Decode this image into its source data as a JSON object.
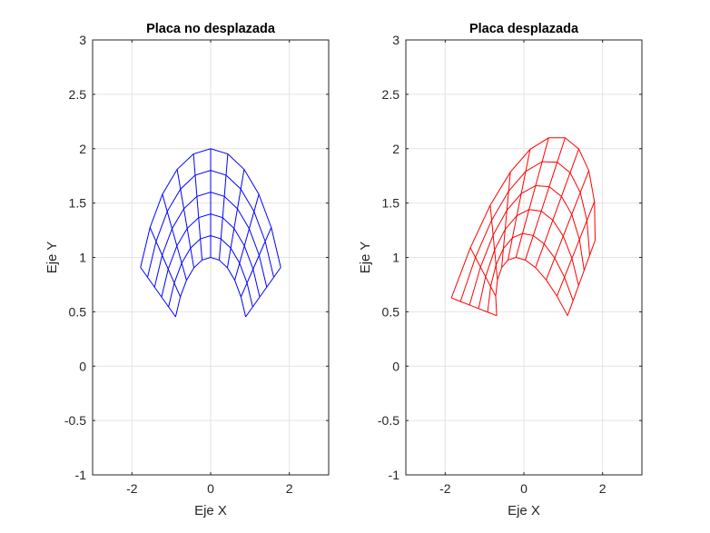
{
  "chart_data": [
    {
      "type": "line",
      "title": "Placa no desplazada",
      "xlabel": "Eje X",
      "ylabel": "Eje Y",
      "xlim": [
        -3,
        3
      ],
      "ylim": [
        -1,
        3
      ],
      "xticks": [
        -2,
        0,
        2
      ],
      "yticks": [
        -1,
        -0.5,
        0,
        0.5,
        1,
        1.5,
        2,
        2.5,
        3
      ],
      "xtick_labels": [
        "-2",
        "0",
        "2"
      ],
      "ytick_labels": [
        "-1",
        "-0.5",
        "0",
        "0.5",
        "1",
        "1.5",
        "2",
        "2.5",
        "3"
      ],
      "grid": true,
      "color": "#0000ff",
      "mesh": {
        "r_range": [
          1,
          2
        ],
        "r_divisions": 5,
        "theta_range_deg": [
          -63,
          63
        ],
        "theta_divisions": 10
      },
      "displacement": null
    },
    {
      "type": "line",
      "title": "Placa desplazada",
      "xlabel": "Eje X",
      "ylabel": "Eje Y",
      "xlim": [
        -3,
        3
      ],
      "ylim": [
        -1,
        3
      ],
      "xticks": [
        -2,
        0,
        2
      ],
      "yticks": [
        -1,
        -0.5,
        0,
        0.5,
        1,
        1.5,
        2,
        2.5,
        3
      ],
      "xtick_labels": [
        "-2",
        "0",
        "2"
      ],
      "ytick_labels": [
        "-1",
        "-0.5",
        "0",
        "0.5",
        "1",
        "1.5",
        "2",
        "2.5",
        "3"
      ],
      "grid": true,
      "color": "#ff0000",
      "mesh": {
        "r_range": [
          1,
          2
        ],
        "r_divisions": 5,
        "theta_range_deg": [
          -63,
          63
        ],
        "theta_divisions": 10
      },
      "displacement": {
        "inner": {
          "left": [
            0.2,
            0.01
          ],
          "center": [
            -0.2,
            0.0
          ],
          "right": [
            0.22,
            0.01
          ]
        },
        "outer": {
          "left": [
            -0.06,
            -0.28
          ],
          "center": [
            0.63,
            0.1
          ],
          "right": [
            0.03,
            0.25
          ]
        }
      }
    }
  ]
}
